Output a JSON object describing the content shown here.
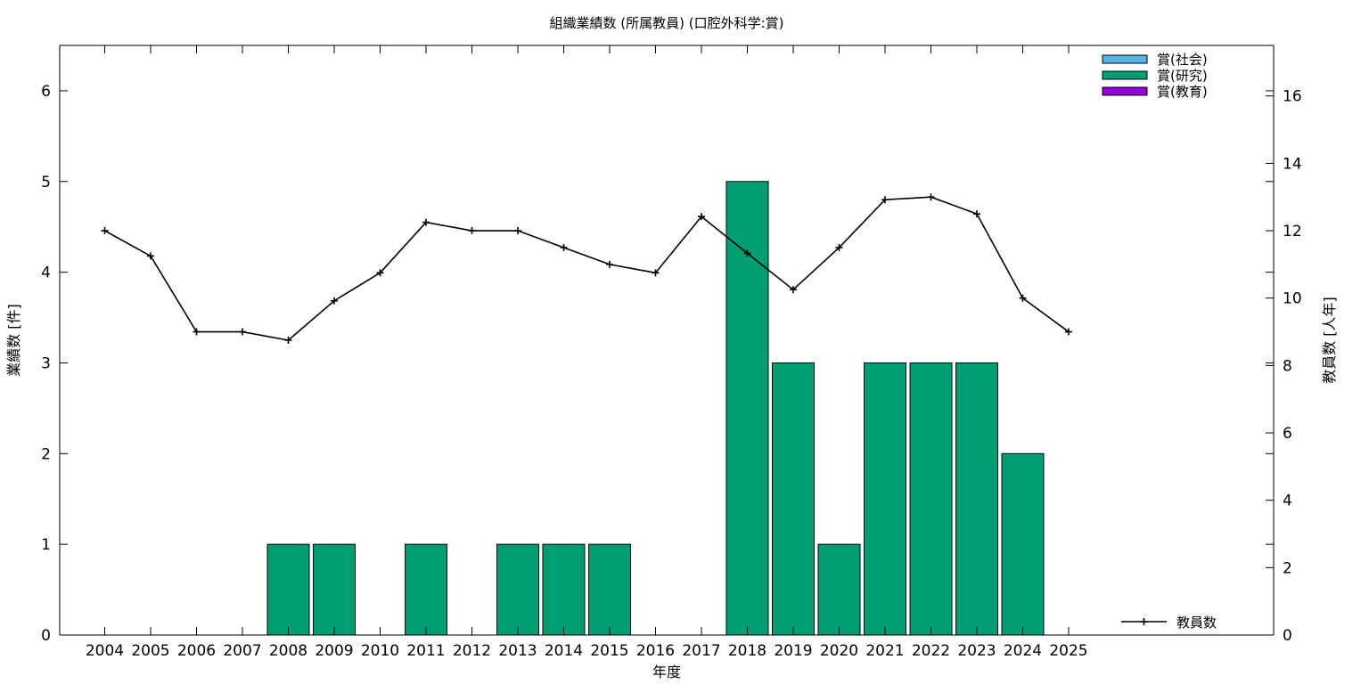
{
  "chart_data": {
    "type": "bar",
    "title": "組織業績数 (所属教員) (口腔外科学:賞)",
    "xlabel": "年度",
    "ylabel": "業績数 [件]",
    "y2label": "教員数 [人年]",
    "categories": [
      "2004",
      "2005",
      "2006",
      "2007",
      "2008",
      "2009",
      "2010",
      "2011",
      "2012",
      "2013",
      "2014",
      "2015",
      "2016",
      "2017",
      "2018",
      "2019",
      "2020",
      "2021",
      "2022",
      "2023",
      "2024",
      "2025"
    ],
    "ylim": [
      0,
      6.5
    ],
    "y2lim": [
      0,
      17.5
    ],
    "yticks": [
      0,
      1,
      2,
      3,
      4,
      5,
      6
    ],
    "y2ticks": [
      0,
      2,
      4,
      6,
      8,
      10,
      12,
      14,
      16
    ],
    "series": [
      {
        "name": "賞(社会)",
        "kind": "bar",
        "axis": "y",
        "color": "#56b4e9",
        "values": [
          0,
          0,
          0,
          0,
          0,
          0,
          0,
          0,
          0,
          0,
          0,
          0,
          0,
          0,
          0,
          0,
          0,
          0,
          0,
          0,
          0,
          0
        ]
      },
      {
        "name": "賞(研究)",
        "kind": "bar",
        "axis": "y",
        "color": "#009e73",
        "values": [
          0,
          0,
          0,
          0,
          1,
          1,
          0,
          1,
          0,
          1,
          1,
          1,
          0,
          0,
          5,
          3,
          1,
          3,
          3,
          3,
          2,
          0
        ]
      },
      {
        "name": "賞(教育)",
        "kind": "bar",
        "axis": "y",
        "color": "#9400d3",
        "values": [
          0,
          0,
          0,
          0,
          0,
          0,
          0,
          0,
          0,
          0,
          0,
          0,
          0,
          0,
          0,
          0,
          0,
          0,
          0,
          0,
          0,
          0
        ]
      },
      {
        "name": "教員数",
        "kind": "line",
        "axis": "y2",
        "color": "#000000",
        "values": [
          12.0,
          11.25,
          9.0,
          9.0,
          8.75,
          9.92,
          10.75,
          12.25,
          12.0,
          12.0,
          11.5,
          11.0,
          10.75,
          12.42,
          11.33,
          10.25,
          11.5,
          12.92,
          13.0,
          12.5,
          10.0,
          9.0
        ]
      }
    ],
    "legend_position": "top-right",
    "grid": false
  }
}
